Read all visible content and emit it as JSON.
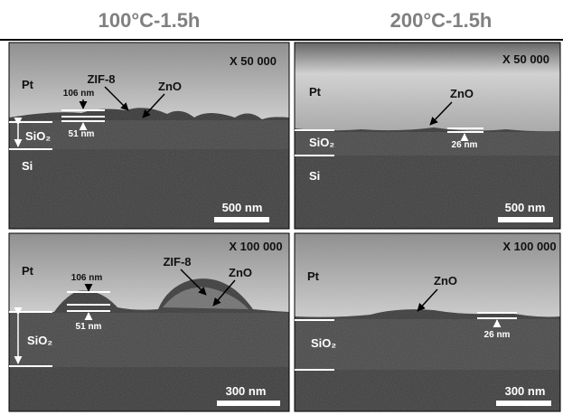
{
  "columns": [
    "100°C-1.5h",
    "200°C-1.5h"
  ],
  "panels": [
    {
      "magnification": "X 50 000",
      "pt": "Pt",
      "zif8": "ZIF-8",
      "zno": "ZnO",
      "thick1": "106 nm",
      "thick2": "51 nm",
      "sio2": "SiO₂",
      "si": "Si",
      "scale_bar": "500 nm"
    },
    {
      "magnification": "X 50 000",
      "pt": "Pt",
      "zno": "ZnO",
      "thick": "26 nm",
      "sio2": "SiO₂",
      "si": "Si",
      "scale_bar": "500 nm"
    },
    {
      "magnification": "X 100 000",
      "pt": "Pt",
      "zif8": "ZIF-8",
      "zno": "ZnO",
      "thick1": "106 nm",
      "thick2": "51 nm",
      "sio2": "SiO₂",
      "scale_bar": "300 nm"
    },
    {
      "magnification": "X 100 000",
      "pt": "Pt",
      "zno": "ZnO",
      "thick": "26 nm",
      "sio2": "SiO₂",
      "scale_bar": "300 nm"
    }
  ]
}
